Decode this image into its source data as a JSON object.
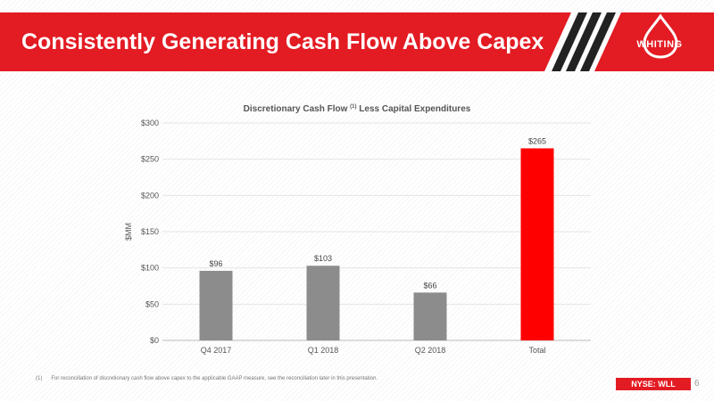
{
  "slide": {
    "title": "Consistently Generating Cash Flow Above Capex",
    "logo_text": "WHITING",
    "ticker_prefix": "NYSE:",
    "ticker_symbol": "WLL",
    "page_number": "6",
    "footnote_mark": "(1)",
    "footnote": "For reconciliation of discretionary cash flow above capex to the applicable GAAP measure, see the reconciliation later in this presentation.",
    "colors": {
      "brand_red": "#e31b23",
      "bar_gray": "#8c8c8c",
      "bar_highlight": "#ff0000"
    }
  },
  "chart_data": {
    "type": "bar",
    "title": "Discretionary Cash Flow",
    "title_superscript": "(1)",
    "title_suffix": "Less Capital Expenditures",
    "ylabel": "$MM",
    "categories": [
      "Q4 2017",
      "Q1 2018",
      "Q2 2018",
      "Total"
    ],
    "values": [
      96,
      103,
      66,
      265
    ],
    "data_labels": [
      "$96",
      "$103",
      "$66",
      "$265"
    ],
    "highlight_index": 3,
    "ylim": [
      0,
      300
    ],
    "yticks": [
      0,
      50,
      100,
      150,
      200,
      250,
      300
    ],
    "ytick_labels": [
      "$0",
      "$50",
      "$100",
      "$150",
      "$200",
      "$250",
      "$300"
    ],
    "grid": true,
    "legend": "none"
  }
}
